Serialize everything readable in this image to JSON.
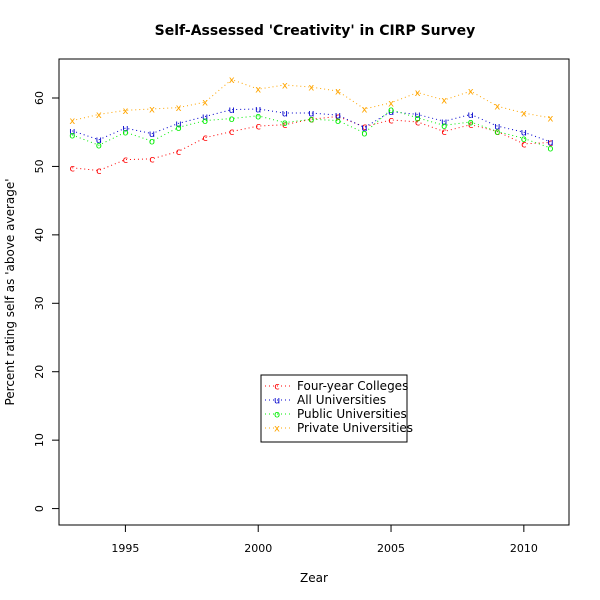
{
  "chart_data": {
    "type": "line",
    "title": "Self-Assessed 'Creativity' in CIRP Survey",
    "xlabel": "Zear",
    "ylabel": "Percent rating self as 'above average'",
    "xlim": [
      1992.5,
      2011.7
    ],
    "ylim": [
      -2.4,
      65.7
    ],
    "x_ticks": [
      1995,
      2000,
      2005,
      2010
    ],
    "y_ticks": [
      0,
      10,
      20,
      30,
      40,
      50,
      60
    ],
    "grid": false,
    "legend_position": "bottom-center",
    "x": [
      1993,
      1994,
      1995,
      1996,
      1997,
      1998,
      1999,
      2000,
      2001,
      2002,
      2003,
      2004,
      2005,
      2006,
      2007,
      2008,
      2009,
      2010,
      2011
    ],
    "series": [
      {
        "name": "Four-year Colleges",
        "marker": "c",
        "color": "#ff0000",
        "values": [
          49.8,
          49.4,
          51.0,
          51.1,
          52.2,
          54.2,
          55.1,
          55.9,
          56.1,
          56.9,
          57.3,
          55.8,
          56.8,
          56.5,
          55.1,
          56.1,
          55.1,
          53.3,
          53.5
        ]
      },
      {
        "name": "All Universities",
        "marker": "u",
        "color": "#0000cc",
        "values": [
          55.2,
          53.9,
          55.6,
          54.8,
          56.3,
          57.3,
          58.3,
          58.4,
          57.8,
          57.8,
          57.5,
          55.7,
          58.0,
          57.6,
          56.6,
          57.6,
          55.9,
          55.0,
          53.6
        ]
      },
      {
        "name": "Public Universities",
        "marker": "o",
        "color": "#00ee00",
        "values": [
          54.6,
          53.1,
          55.0,
          53.7,
          55.7,
          56.7,
          57.0,
          57.4,
          56.4,
          56.9,
          56.7,
          54.9,
          58.3,
          57.1,
          56.0,
          56.5,
          55.1,
          54.1,
          52.7
        ]
      },
      {
        "name": "Private Universities",
        "marker": "x",
        "color": "#ffa500",
        "values": [
          56.7,
          57.6,
          58.2,
          58.4,
          58.6,
          59.4,
          62.7,
          61.3,
          61.9,
          61.6,
          61.0,
          58.4,
          59.3,
          60.8,
          59.7,
          61.0,
          58.8,
          57.8,
          57.1
        ]
      }
    ]
  }
}
